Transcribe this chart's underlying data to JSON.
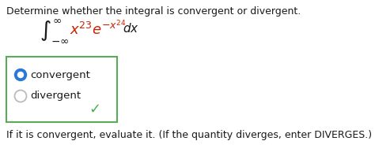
{
  "title_text": "Determine whether the integral is convergent or divergent.",
  "option1_text": "convergent",
  "option2_text": "divergent",
  "footer_text": "If it is convergent, evaluate it. (If the quantity diverges, enter DIVERGES.)",
  "bg_color": "#ffffff",
  "box_color": "#5aaa5a",
  "radio_fill_color": "#2979d8",
  "radio_border_color": "#cccccc",
  "checkmark_color": "#4CAF50",
  "title_fontsize": 9.0,
  "option_fontsize": 9.5,
  "footer_fontsize": 9.0,
  "text_color": "#1a1a1a",
  "integral_red_color": "#cc2200",
  "integral_black_color": "#1a1a1a",
  "fig_width": 4.74,
  "fig_height": 1.93,
  "dpi": 100
}
